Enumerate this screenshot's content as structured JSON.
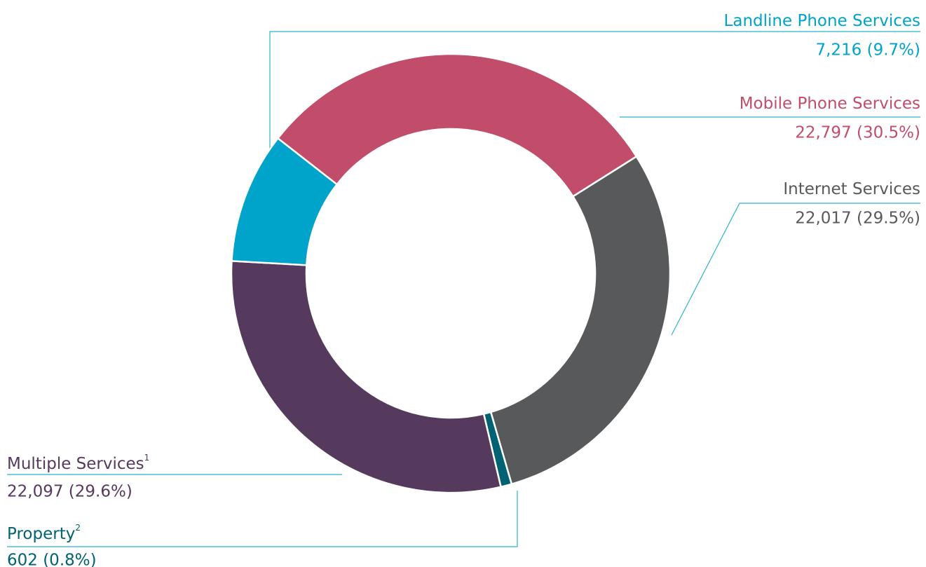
{
  "chart_data": {
    "type": "donut",
    "categories": [
      "Mobile Phone Services",
      "Internet Services",
      "Property",
      "Multiple Services",
      "Landline Phone Services"
    ],
    "category_notes": [
      null,
      null,
      "2",
      "1",
      null
    ],
    "values": [
      22797,
      22017,
      602,
      22097,
      7216
    ],
    "value_labels": [
      "22,797 (30.5%)",
      "22,017 (29.5%)",
      "602 (0.8%)",
      "22,097 (29.6%)",
      "7,216  (9.7%)"
    ],
    "colors": [
      "#c24d6b",
      "#58595b",
      "#006272",
      "#563a5e",
      "#00a3c9"
    ]
  }
}
